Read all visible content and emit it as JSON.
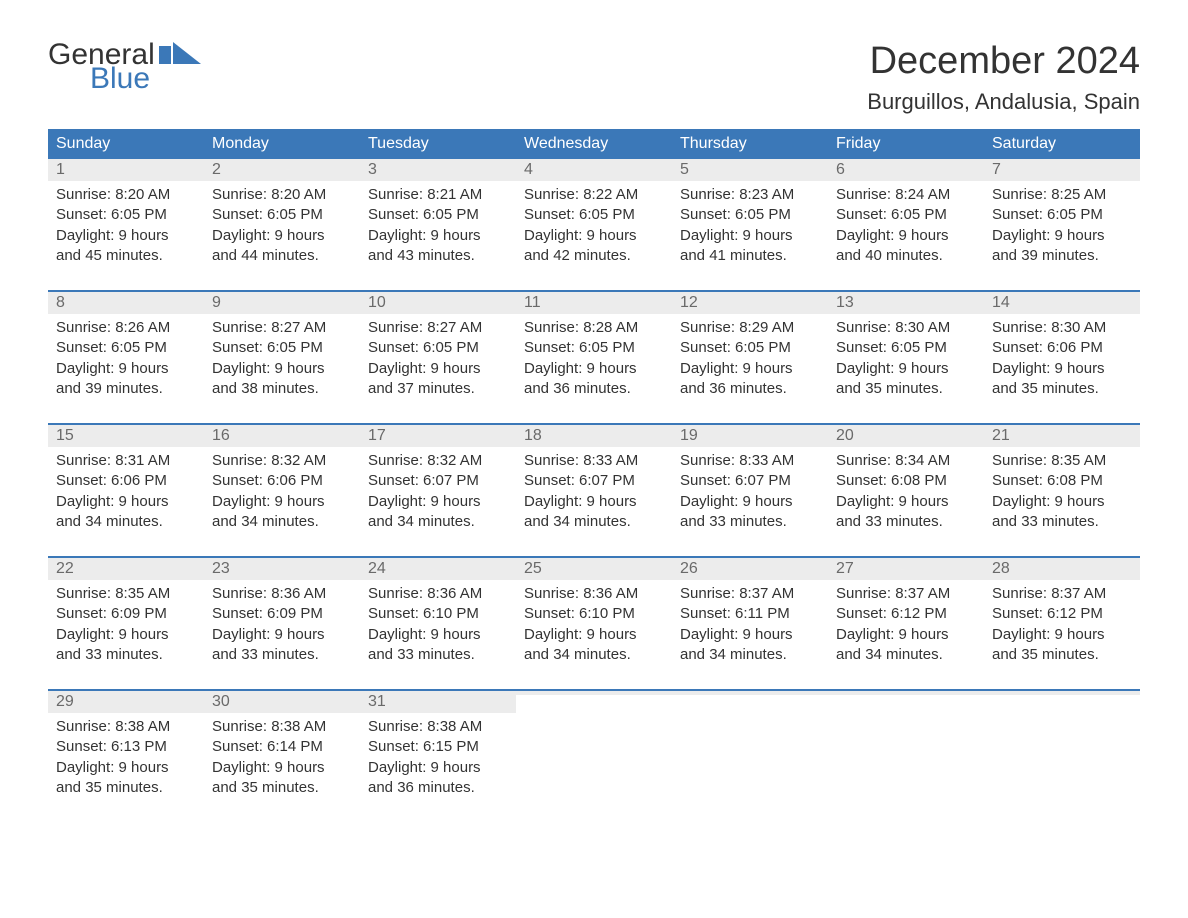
{
  "logo": {
    "line1": "General",
    "line2": "Blue",
    "flag_color": "#3b78b8",
    "text_color_dark": "#333333"
  },
  "title": "December 2024",
  "location": "Burguillos, Andalusia, Spain",
  "colors": {
    "header_bg": "#3b78b8",
    "header_text": "#ffffff",
    "daynum_bg": "#ececec",
    "daynum_text": "#6a6a6a",
    "body_text": "#333333",
    "week_border": "#3b78b8",
    "page_bg": "#ffffff"
  },
  "typography": {
    "title_fontsize": 38,
    "location_fontsize": 22,
    "weekday_fontsize": 16,
    "daynum_fontsize": 16,
    "body_fontsize": 15,
    "logo_fontsize": 30
  },
  "weekdays": [
    "Sunday",
    "Monday",
    "Tuesday",
    "Wednesday",
    "Thursday",
    "Friday",
    "Saturday"
  ],
  "weeks": [
    [
      {
        "n": "1",
        "sunrise": "Sunrise: 8:20 AM",
        "sunset": "Sunset: 6:05 PM",
        "d1": "Daylight: 9 hours",
        "d2": "and 45 minutes."
      },
      {
        "n": "2",
        "sunrise": "Sunrise: 8:20 AM",
        "sunset": "Sunset: 6:05 PM",
        "d1": "Daylight: 9 hours",
        "d2": "and 44 minutes."
      },
      {
        "n": "3",
        "sunrise": "Sunrise: 8:21 AM",
        "sunset": "Sunset: 6:05 PM",
        "d1": "Daylight: 9 hours",
        "d2": "and 43 minutes."
      },
      {
        "n": "4",
        "sunrise": "Sunrise: 8:22 AM",
        "sunset": "Sunset: 6:05 PM",
        "d1": "Daylight: 9 hours",
        "d2": "and 42 minutes."
      },
      {
        "n": "5",
        "sunrise": "Sunrise: 8:23 AM",
        "sunset": "Sunset: 6:05 PM",
        "d1": "Daylight: 9 hours",
        "d2": "and 41 minutes."
      },
      {
        "n": "6",
        "sunrise": "Sunrise: 8:24 AM",
        "sunset": "Sunset: 6:05 PM",
        "d1": "Daylight: 9 hours",
        "d2": "and 40 minutes."
      },
      {
        "n": "7",
        "sunrise": "Sunrise: 8:25 AM",
        "sunset": "Sunset: 6:05 PM",
        "d1": "Daylight: 9 hours",
        "d2": "and 39 minutes."
      }
    ],
    [
      {
        "n": "8",
        "sunrise": "Sunrise: 8:26 AM",
        "sunset": "Sunset: 6:05 PM",
        "d1": "Daylight: 9 hours",
        "d2": "and 39 minutes."
      },
      {
        "n": "9",
        "sunrise": "Sunrise: 8:27 AM",
        "sunset": "Sunset: 6:05 PM",
        "d1": "Daylight: 9 hours",
        "d2": "and 38 minutes."
      },
      {
        "n": "10",
        "sunrise": "Sunrise: 8:27 AM",
        "sunset": "Sunset: 6:05 PM",
        "d1": "Daylight: 9 hours",
        "d2": "and 37 minutes."
      },
      {
        "n": "11",
        "sunrise": "Sunrise: 8:28 AM",
        "sunset": "Sunset: 6:05 PM",
        "d1": "Daylight: 9 hours",
        "d2": "and 36 minutes."
      },
      {
        "n": "12",
        "sunrise": "Sunrise: 8:29 AM",
        "sunset": "Sunset: 6:05 PM",
        "d1": "Daylight: 9 hours",
        "d2": "and 36 minutes."
      },
      {
        "n": "13",
        "sunrise": "Sunrise: 8:30 AM",
        "sunset": "Sunset: 6:05 PM",
        "d1": "Daylight: 9 hours",
        "d2": "and 35 minutes."
      },
      {
        "n": "14",
        "sunrise": "Sunrise: 8:30 AM",
        "sunset": "Sunset: 6:06 PM",
        "d1": "Daylight: 9 hours",
        "d2": "and 35 minutes."
      }
    ],
    [
      {
        "n": "15",
        "sunrise": "Sunrise: 8:31 AM",
        "sunset": "Sunset: 6:06 PM",
        "d1": "Daylight: 9 hours",
        "d2": "and 34 minutes."
      },
      {
        "n": "16",
        "sunrise": "Sunrise: 8:32 AM",
        "sunset": "Sunset: 6:06 PM",
        "d1": "Daylight: 9 hours",
        "d2": "and 34 minutes."
      },
      {
        "n": "17",
        "sunrise": "Sunrise: 8:32 AM",
        "sunset": "Sunset: 6:07 PM",
        "d1": "Daylight: 9 hours",
        "d2": "and 34 minutes."
      },
      {
        "n": "18",
        "sunrise": "Sunrise: 8:33 AM",
        "sunset": "Sunset: 6:07 PM",
        "d1": "Daylight: 9 hours",
        "d2": "and 34 minutes."
      },
      {
        "n": "19",
        "sunrise": "Sunrise: 8:33 AM",
        "sunset": "Sunset: 6:07 PM",
        "d1": "Daylight: 9 hours",
        "d2": "and 33 minutes."
      },
      {
        "n": "20",
        "sunrise": "Sunrise: 8:34 AM",
        "sunset": "Sunset: 6:08 PM",
        "d1": "Daylight: 9 hours",
        "d2": "and 33 minutes."
      },
      {
        "n": "21",
        "sunrise": "Sunrise: 8:35 AM",
        "sunset": "Sunset: 6:08 PM",
        "d1": "Daylight: 9 hours",
        "d2": "and 33 minutes."
      }
    ],
    [
      {
        "n": "22",
        "sunrise": "Sunrise: 8:35 AM",
        "sunset": "Sunset: 6:09 PM",
        "d1": "Daylight: 9 hours",
        "d2": "and 33 minutes."
      },
      {
        "n": "23",
        "sunrise": "Sunrise: 8:36 AM",
        "sunset": "Sunset: 6:09 PM",
        "d1": "Daylight: 9 hours",
        "d2": "and 33 minutes."
      },
      {
        "n": "24",
        "sunrise": "Sunrise: 8:36 AM",
        "sunset": "Sunset: 6:10 PM",
        "d1": "Daylight: 9 hours",
        "d2": "and 33 minutes."
      },
      {
        "n": "25",
        "sunrise": "Sunrise: 8:36 AM",
        "sunset": "Sunset: 6:10 PM",
        "d1": "Daylight: 9 hours",
        "d2": "and 34 minutes."
      },
      {
        "n": "26",
        "sunrise": "Sunrise: 8:37 AM",
        "sunset": "Sunset: 6:11 PM",
        "d1": "Daylight: 9 hours",
        "d2": "and 34 minutes."
      },
      {
        "n": "27",
        "sunrise": "Sunrise: 8:37 AM",
        "sunset": "Sunset: 6:12 PM",
        "d1": "Daylight: 9 hours",
        "d2": "and 34 minutes."
      },
      {
        "n": "28",
        "sunrise": "Sunrise: 8:37 AM",
        "sunset": "Sunset: 6:12 PM",
        "d1": "Daylight: 9 hours",
        "d2": "and 35 minutes."
      }
    ],
    [
      {
        "n": "29",
        "sunrise": "Sunrise: 8:38 AM",
        "sunset": "Sunset: 6:13 PM",
        "d1": "Daylight: 9 hours",
        "d2": "and 35 minutes."
      },
      {
        "n": "30",
        "sunrise": "Sunrise: 8:38 AM",
        "sunset": "Sunset: 6:14 PM",
        "d1": "Daylight: 9 hours",
        "d2": "and 35 minutes."
      },
      {
        "n": "31",
        "sunrise": "Sunrise: 8:38 AM",
        "sunset": "Sunset: 6:15 PM",
        "d1": "Daylight: 9 hours",
        "d2": "and 36 minutes."
      },
      {
        "empty": true
      },
      {
        "empty": true
      },
      {
        "empty": true
      },
      {
        "empty": true
      }
    ]
  ]
}
